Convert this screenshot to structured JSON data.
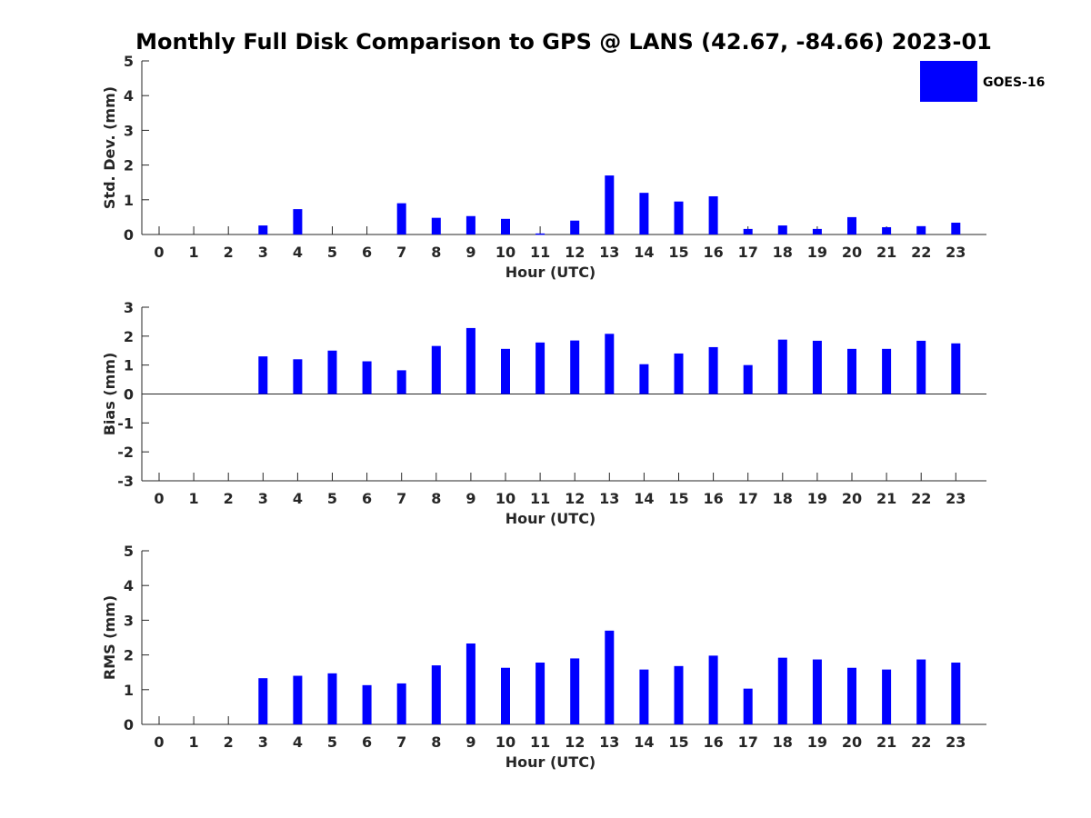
{
  "title": "Monthly Full Disk Comparison to GPS @ LANS (42.67, -84.66) 2023-01",
  "colors": {
    "bar": "#0000ff",
    "axis": "#262626"
  },
  "legend": {
    "label": "GOES-16",
    "position": "top-right"
  },
  "chart_data": [
    {
      "type": "bar",
      "title": "",
      "xlabel": "Hour (UTC)",
      "ylabel": "Std. Dev. (mm)",
      "ylim": [
        0,
        5
      ],
      "yticks": [
        "0",
        "1",
        "2",
        "3",
        "4",
        "5"
      ],
      "categories": [
        "0",
        "1",
        "2",
        "3",
        "4",
        "5",
        "6",
        "7",
        "8",
        "9",
        "10",
        "11",
        "12",
        "13",
        "14",
        "15",
        "16",
        "17",
        "18",
        "19",
        "20",
        "21",
        "22",
        "23"
      ],
      "series": [
        {
          "name": "GOES-16",
          "values": [
            0,
            0,
            0,
            0.26,
            0.73,
            0,
            0,
            0.9,
            0.48,
            0.53,
            0.45,
            0.03,
            0.4,
            1.7,
            1.2,
            0.95,
            1.1,
            0.16,
            0.26,
            0.16,
            0.5,
            0.21,
            0.24,
            0.34
          ]
        }
      ]
    },
    {
      "type": "bar",
      "title": "",
      "xlabel": "Hour (UTC)",
      "ylabel": "Bias (mm)",
      "ylim": [
        -3,
        3
      ],
      "yticks": [
        "-3",
        "-2",
        "-1",
        "0",
        "1",
        "2",
        "3"
      ],
      "categories": [
        "0",
        "1",
        "2",
        "3",
        "4",
        "5",
        "6",
        "7",
        "8",
        "9",
        "10",
        "11",
        "12",
        "13",
        "14",
        "15",
        "16",
        "17",
        "18",
        "19",
        "20",
        "21",
        "22",
        "23"
      ],
      "series": [
        {
          "name": "GOES-16",
          "values": [
            0,
            0,
            0,
            1.3,
            1.2,
            1.5,
            1.13,
            0.82,
            1.66,
            2.28,
            1.56,
            1.78,
            1.85,
            2.08,
            1.03,
            1.4,
            1.62,
            1.0,
            1.88,
            1.84,
            1.56,
            1.56,
            1.84,
            1.75
          ]
        }
      ]
    },
    {
      "type": "bar",
      "title": "",
      "xlabel": "Hour (UTC)",
      "ylabel": "RMS (mm)",
      "ylim": [
        0,
        5
      ],
      "yticks": [
        "0",
        "1",
        "2",
        "3",
        "4",
        "5"
      ],
      "categories": [
        "0",
        "1",
        "2",
        "3",
        "4",
        "5",
        "6",
        "7",
        "8",
        "9",
        "10",
        "11",
        "12",
        "13",
        "14",
        "15",
        "16",
        "17",
        "18",
        "19",
        "20",
        "21",
        "22",
        "23"
      ],
      "series": [
        {
          "name": "GOES-16",
          "values": [
            0,
            0,
            0,
            1.33,
            1.4,
            1.47,
            1.13,
            1.18,
            1.7,
            2.33,
            1.63,
            1.78,
            1.9,
            2.7,
            1.58,
            1.68,
            1.98,
            1.03,
            1.92,
            1.87,
            1.63,
            1.58,
            1.87,
            1.78
          ]
        }
      ]
    }
  ]
}
